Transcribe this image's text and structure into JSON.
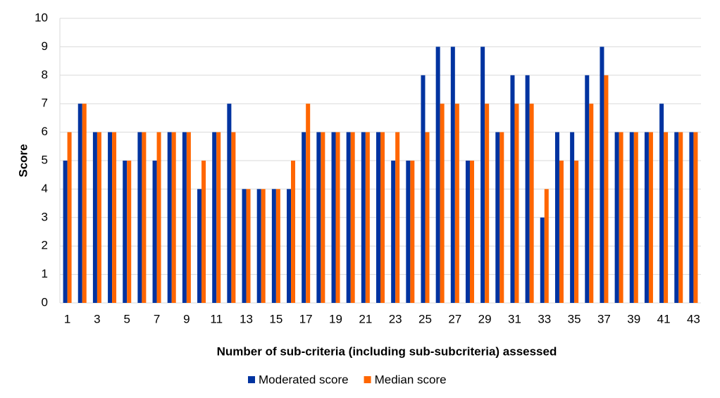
{
  "chart_data": {
    "type": "bar",
    "x_label": "Number of sub-criteria (including sub-subcriteria) assessed",
    "y_label": "Score",
    "categories": [
      1,
      null,
      3,
      null,
      5,
      null,
      7,
      null,
      9,
      null,
      11,
      null,
      13,
      null,
      15,
      null,
      17,
      null,
      19,
      null,
      21,
      null,
      23,
      null,
      25,
      null,
      27,
      null,
      29,
      null,
      31,
      null,
      33,
      null,
      35,
      null,
      37,
      null,
      39,
      null,
      41,
      null,
      43
    ],
    "series": [
      {
        "name": "Moderated score",
        "color": "#0033a0",
        "values": [
          5,
          7,
          6,
          6,
          5,
          6,
          5,
          6,
          6,
          4,
          6,
          7,
          4,
          4,
          4,
          4,
          6,
          6,
          6,
          6,
          6,
          6,
          5,
          5,
          8,
          9,
          9,
          5,
          9,
          6,
          8,
          8,
          3,
          6,
          6,
          8,
          9,
          6,
          6,
          6,
          7,
          6,
          6
        ]
      },
      {
        "name": "Median score",
        "color": "#ff6600",
        "values": [
          6,
          7,
          6,
          6,
          5,
          6,
          6,
          6,
          6,
          5,
          6,
          6,
          4,
          4,
          4,
          5,
          7,
          6,
          6,
          6,
          6,
          6,
          6,
          5,
          6,
          7,
          7,
          5,
          7,
          6,
          7,
          7,
          4,
          5,
          5,
          7,
          8,
          6,
          6,
          6,
          6,
          6,
          6
        ]
      }
    ],
    "ylim": [
      0,
      10
    ],
    "yticks": [
      0,
      1,
      2,
      3,
      4,
      5,
      6,
      7,
      8,
      9,
      10
    ],
    "grid": true,
    "legend": "bottom"
  }
}
